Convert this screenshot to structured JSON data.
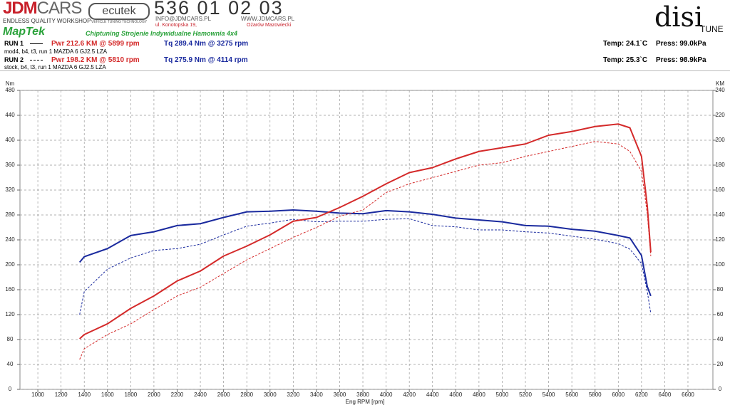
{
  "header": {
    "logo_jdm": "JDM",
    "logo_cars": "CARS",
    "tagline": "ENDLESS QUALITY WORKSHOP",
    "ecutek": "ecutek",
    "ecutek_sub": "VEHICLE TUNING TECHNOLOGY",
    "phone": "536 01 02 03",
    "email": "INFO@JDMCARS.PL",
    "www": "WWW.JDMCARS.PL",
    "address": "ul. Konotopska 19,",
    "city": "Ożarów Mazowiecki",
    "maptek": "MapTek",
    "maptek_sub": "Chiptuning Strojenie Indywidualne Hamownia 4x4",
    "disi": "disi",
    "tune": "TUNE"
  },
  "runs": [
    {
      "label": "RUN 1",
      "pwr": "Pwr  212.6 KM @ 5899 rpm",
      "tq": "Tq  289.4 Nm @ 3275 rpm",
      "desc": "mod4, b4, t3, run 1 MAZDA 6 GJ2.5 LZA",
      "temp": "Temp: 24.1`C",
      "press": "Press: 99.0kPa"
    },
    {
      "label": "RUN 2",
      "pwr": "Pwr  198.2 KM @ 5810 rpm",
      "tq": "Tq  275.9 Nm @ 4114 rpm",
      "desc": "stock, b4, t3, run 1 MAZDA 6 GJ2.5 LZA",
      "temp": "Temp: 25.3`C",
      "press": "Press: 98.9kPa"
    }
  ],
  "chart_data": {
    "type": "line",
    "x_label": "Eng RPM [rpm]",
    "y_label": "Nm",
    "y2_label": "KM",
    "grid": true,
    "x": [
      1360,
      1400,
      1600,
      1800,
      2000,
      2200,
      2400,
      2600,
      2800,
      3000,
      3200,
      3400,
      3600,
      3800,
      4000,
      4200,
      4400,
      4600,
      4800,
      5000,
      5200,
      5400,
      5600,
      5800,
      6000,
      6100,
      6200,
      6250,
      6280
    ],
    "series": [
      {
        "color": "#1a2a9e",
        "dash": "solid",
        "values": [
          204,
          213,
          226,
          247,
          253,
          263,
          266,
          276,
          285,
          286,
          288,
          286,
          283,
          282,
          287,
          285,
          281,
          275,
          272,
          269,
          263,
          262,
          257,
          254,
          247,
          243,
          215,
          165,
          150
        ]
      },
      {
        "color": "#1a2a9e",
        "dash": "dashed",
        "values": [
          120,
          157,
          193,
          211,
          223,
          226,
          233,
          248,
          262,
          267,
          273,
          269,
          270,
          270,
          273,
          274,
          263,
          261,
          256,
          256,
          253,
          251,
          246,
          241,
          234,
          225,
          202,
          157,
          122
        ]
      },
      {
        "color": "#d42a2a",
        "dash": "solid",
        "axis": "y2",
        "values": [
          40.6,
          44,
          52.6,
          65,
          75,
          87,
          95,
          107,
          115,
          124,
          135,
          138,
          146,
          155,
          165,
          174,
          178,
          185,
          191,
          194,
          197,
          204,
          207,
          211,
          213,
          210,
          187,
          147,
          110
        ]
      },
      {
        "color": "#d42a2a",
        "dash": "dashed",
        "axis": "y2",
        "values": [
          24,
          32.6,
          44,
          52.6,
          64,
          75,
          82,
          93,
          104,
          113,
          122,
          130,
          139,
          144,
          158,
          165,
          170,
          175,
          180,
          182,
          187,
          191,
          195,
          199,
          197,
          191,
          175,
          141,
          107
        ]
      }
    ],
    "xlim": [
      846,
      6815
    ],
    "xticks": [
      1000,
      1200,
      1400,
      1600,
      1800,
      2000,
      2200,
      2400,
      2600,
      2800,
      3000,
      3200,
      3400,
      3600,
      3800,
      4000,
      4200,
      4400,
      4600,
      4800,
      5000,
      5200,
      5400,
      5600,
      5800,
      6000,
      6200,
      6400,
      6600
    ],
    "ylim": [
      0,
      480
    ],
    "yticks": [
      0,
      40,
      80,
      120,
      160,
      200,
      240,
      280,
      320,
      360,
      400,
      440,
      480
    ],
    "y2lim": [
      0,
      240
    ],
    "y2ticks": [
      0,
      20,
      40,
      60,
      80,
      100,
      120,
      140,
      160,
      180,
      200,
      220,
      240
    ]
  }
}
